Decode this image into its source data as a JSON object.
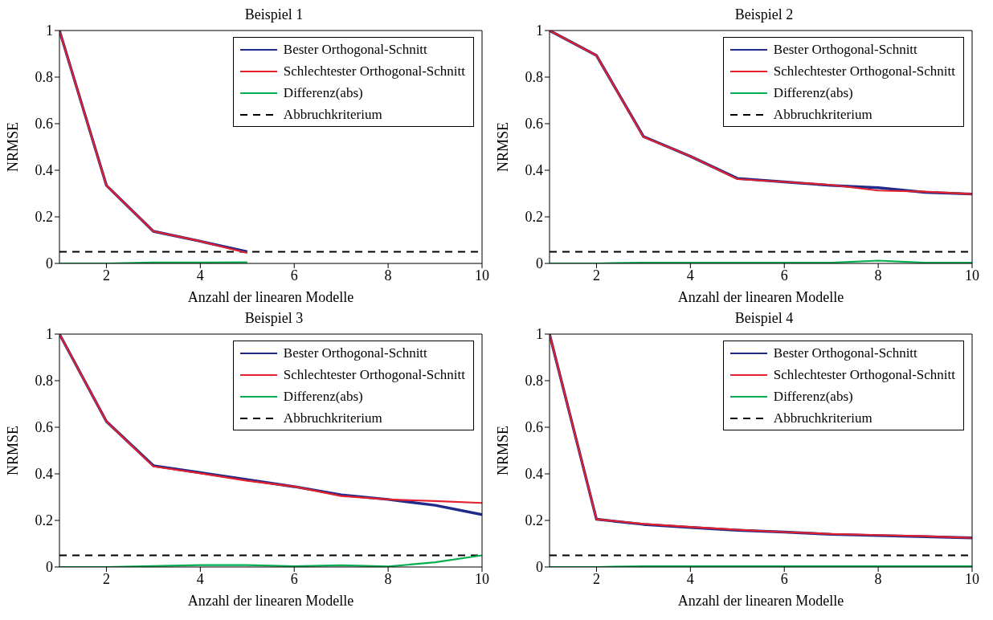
{
  "chart_data": [
    {
      "type": "line",
      "title": "Beispiel 1",
      "xlabel": "Anzahl der linearen Modelle",
      "ylabel": "NRMSE",
      "x": [
        1,
        2,
        3,
        4,
        5
      ],
      "xlim": [
        1,
        10
      ],
      "xticks": [
        2,
        4,
        6,
        8,
        10
      ],
      "ylim": [
        0,
        1
      ],
      "yticks": [
        0,
        0.2,
        0.4,
        0.6,
        0.8,
        1
      ],
      "legend": "top right",
      "grid": false,
      "line_style": "solid",
      "series": [
        {
          "name": "Bester Orthogonal-Schnitt",
          "color": "#1f2a8a",
          "values": [
            1,
            0.335,
            0.138,
            0.095,
            0.05
          ]
        },
        {
          "name": "Schlechtester Orthogonal-Schnitt",
          "color": "#e3202c",
          "values": [
            1,
            0.335,
            0.138,
            0.095,
            0.045
          ]
        },
        {
          "name": "Differenz(abs)",
          "color": "#00b050",
          "values": [
            0,
            0,
            0.004,
            0.004,
            0.005
          ]
        }
      ],
      "ref_lines": [
        {
          "axis": "y",
          "value": 0.05,
          "label": "Abbruchkriterium",
          "color": "#000000",
          "line_style": "dashed"
        }
      ]
    },
    {
      "type": "line",
      "title": "Beispiel 2",
      "xlabel": "Anzahl der linearen Modelle",
      "ylabel": "NRMSE",
      "x": [
        1,
        2,
        3,
        4,
        5,
        6,
        7,
        8,
        9,
        10
      ],
      "xlim": [
        1,
        10
      ],
      "xticks": [
        2,
        4,
        6,
        8,
        10
      ],
      "ylim": [
        0,
        1
      ],
      "yticks": [
        0,
        0.2,
        0.4,
        0.6,
        0.8,
        1
      ],
      "legend": "top right",
      "grid": false,
      "line_style": "solid",
      "series": [
        {
          "name": "Bester Orthogonal-Schnitt",
          "color": "#1f2a8a",
          "values": [
            1,
            0.893,
            0.545,
            0.46,
            0.365,
            0.35,
            0.335,
            0.325,
            0.305,
            0.298
          ]
        },
        {
          "name": "Schlechtester Orthogonal-Schnitt",
          "color": "#e3202c",
          "values": [
            1,
            0.893,
            0.543,
            0.46,
            0.362,
            0.35,
            0.337,
            0.313,
            0.308,
            0.298
          ]
        },
        {
          "name": "Differenz(abs)",
          "color": "#00b050",
          "values": [
            0,
            0,
            0.003,
            0.003,
            0.003,
            0.003,
            0.003,
            0.012,
            0.003,
            0.003
          ]
        }
      ],
      "ref_lines": [
        {
          "axis": "y",
          "value": 0.05,
          "label": "Abbruchkriterium",
          "color": "#000000",
          "line_style": "dashed"
        }
      ]
    },
    {
      "type": "line",
      "title": "Beispiel 3",
      "xlabel": "Anzahl der linearen Modelle",
      "ylabel": "NRMSE",
      "x": [
        1,
        2,
        3,
        4,
        5,
        6,
        7,
        8,
        9,
        10
      ],
      "xlim": [
        1,
        10
      ],
      "xticks": [
        2,
        4,
        6,
        8,
        10
      ],
      "ylim": [
        0,
        1
      ],
      "yticks": [
        0,
        0.2,
        0.4,
        0.6,
        0.8,
        1
      ],
      "legend": "top right",
      "grid": false,
      "line_style": "solid",
      "series": [
        {
          "name": "Bester Orthogonal-Schnitt",
          "color": "#1f2a8a",
          "values": [
            1,
            0.625,
            0.435,
            0.405,
            0.375,
            0.345,
            0.31,
            0.29,
            0.265,
            0.225
          ]
        },
        {
          "name": "Schlechtester Orthogonal-Schnitt",
          "color": "#e3202c",
          "values": [
            1,
            0.625,
            0.432,
            0.402,
            0.37,
            0.345,
            0.305,
            0.29,
            0.283,
            0.275
          ]
        },
        {
          "name": "Differenz(abs)",
          "color": "#00b050",
          "values": [
            0,
            0,
            0.004,
            0.008,
            0.008,
            0.003,
            0.007,
            0.002,
            0.02,
            0.05
          ]
        }
      ],
      "ref_lines": [
        {
          "axis": "y",
          "value": 0.05,
          "label": "Abbruchkriterium",
          "color": "#000000",
          "line_style": "dashed"
        }
      ]
    },
    {
      "type": "line",
      "title": "Beispiel 4",
      "xlabel": "Anzahl der linearen Modelle",
      "ylabel": "NRMSE",
      "x": [
        1,
        2,
        3,
        4,
        5,
        6,
        7,
        8,
        9,
        10
      ],
      "xlim": [
        1,
        10
      ],
      "xticks": [
        2,
        4,
        6,
        8,
        10
      ],
      "ylim": [
        0,
        1
      ],
      "yticks": [
        0,
        0.2,
        0.4,
        0.6,
        0.8,
        1
      ],
      "legend": "top right",
      "grid": false,
      "line_style": "solid",
      "series": [
        {
          "name": "Bester Orthogonal-Schnitt",
          "color": "#1f2a8a",
          "values": [
            1,
            0.205,
            0.183,
            0.17,
            0.158,
            0.15,
            0.14,
            0.135,
            0.13,
            0.125
          ]
        },
        {
          "name": "Schlechtester Orthogonal-Schnitt",
          "color": "#e3202c",
          "values": [
            1,
            0.205,
            0.185,
            0.172,
            0.16,
            0.15,
            0.142,
            0.137,
            0.132,
            0.125
          ]
        },
        {
          "name": "Differenz(abs)",
          "color": "#00b050",
          "values": [
            0,
            0,
            0.003,
            0.003,
            0.003,
            0.003,
            0.003,
            0.003,
            0.003,
            0.003
          ]
        }
      ],
      "ref_lines": [
        {
          "axis": "y",
          "value": 0.05,
          "label": "Abbruchkriterium",
          "color": "#000000",
          "line_style": "dashed"
        }
      ]
    }
  ]
}
